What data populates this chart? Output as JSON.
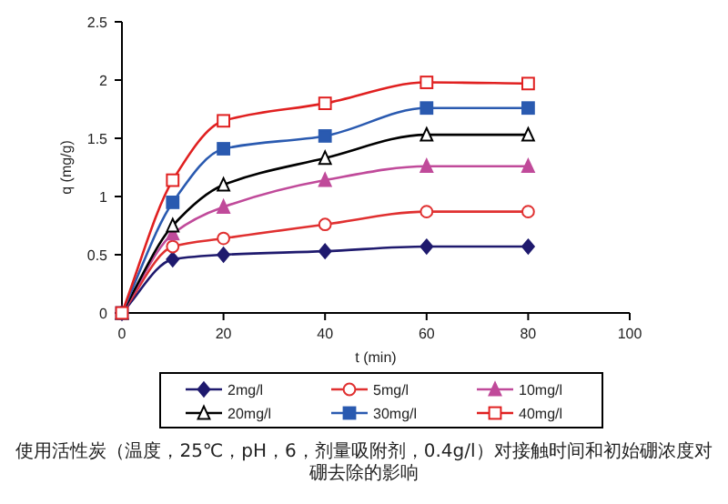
{
  "chart_data": {
    "type": "line",
    "xlabel": "t (min)",
    "ylabel": "q (mg/g)",
    "x": [
      0,
      10,
      20,
      40,
      60,
      80
    ],
    "xlim": [
      0,
      100
    ],
    "xticks": [
      0,
      20,
      40,
      60,
      80,
      100
    ],
    "ylim": [
      0,
      2.5
    ],
    "yticks": [
      0,
      0.5,
      1,
      1.5,
      2,
      2.5
    ],
    "grid": false,
    "legend": "bottom",
    "line_style": "solid",
    "series": [
      {
        "name": "2mg/l",
        "color": "#1f1a6e",
        "marker": "diamond",
        "values": [
          0,
          0.46,
          0.5,
          0.53,
          0.57,
          0.57
        ]
      },
      {
        "name": "5mg/l",
        "color": "#e03030",
        "marker": "circle",
        "values": [
          0,
          0.57,
          0.64,
          0.76,
          0.87,
          0.87
        ]
      },
      {
        "name": "10mg/l",
        "color": "#c04a9a",
        "marker": "triangle",
        "values": [
          0,
          0.68,
          0.91,
          1.14,
          1.26,
          1.26
        ]
      },
      {
        "name": "20mg/l",
        "color": "#000000",
        "marker": "triangle",
        "values": [
          0,
          0.75,
          1.1,
          1.33,
          1.53,
          1.53
        ]
      },
      {
        "name": "30mg/l",
        "color": "#2a5ab0",
        "marker": "square",
        "values": [
          0,
          0.95,
          1.41,
          1.52,
          1.76,
          1.76
        ]
      },
      {
        "name": "40mg/l",
        "color": "#e02020",
        "marker": "square",
        "values": [
          0,
          1.14,
          1.65,
          1.8,
          1.98,
          1.97
        ]
      }
    ],
    "annotations": [
      "使用活性炭（温度，25℃，pH，6，剂量吸附剂，0.4g/l）对接触时间和初始硼浓度对硼去除的影响"
    ]
  }
}
